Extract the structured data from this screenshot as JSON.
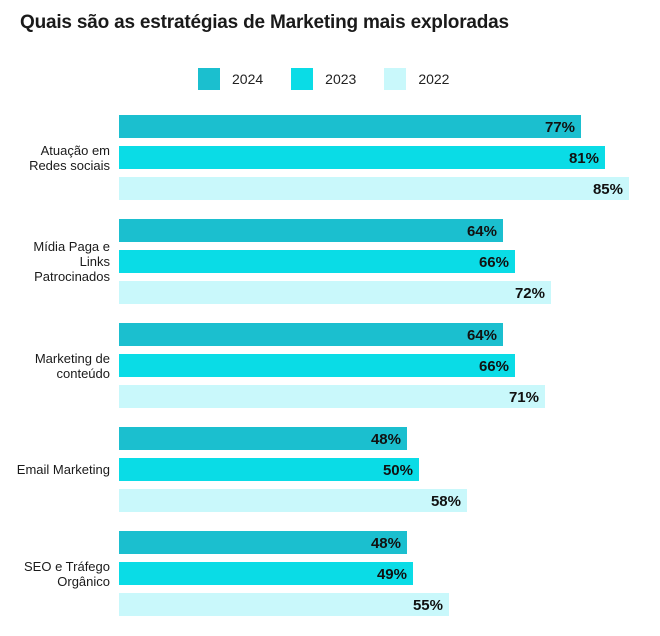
{
  "title": "Quais são as estratégias de Marketing mais exploradas",
  "colors": {
    "2024": "#1bbfcf",
    "2023": "#0adce6",
    "2022": "#c9f8fb"
  },
  "chart_data": {
    "type": "bar",
    "orientation": "horizontal",
    "title": "Quais são as estratégias de Marketing mais exploradas",
    "categories": [
      "Atuação em Redes sociais",
      "Mídia Paga e Links Patrocinados",
      "Marketing de conteúdo",
      "Email Marketing",
      "SEO e Tráfego Orgânico"
    ],
    "series": [
      {
        "name": "2024",
        "values": [
          77,
          64,
          64,
          48,
          48
        ],
        "labels": [
          "77%",
          "64%",
          "64%",
          "48%",
          "48%"
        ]
      },
      {
        "name": "2023",
        "values": [
          81,
          66,
          66,
          50,
          49
        ],
        "labels": [
          "81%",
          "66%",
          "66%",
          "50%",
          "49%"
        ]
      },
      {
        "name": "2022",
        "values": [
          85,
          72,
          71,
          58,
          55
        ],
        "labels": [
          "85%",
          "72%",
          "71%",
          "58%",
          "55%"
        ]
      }
    ],
    "xlim": [
      0,
      85
    ],
    "legend": "top",
    "grid": false
  }
}
